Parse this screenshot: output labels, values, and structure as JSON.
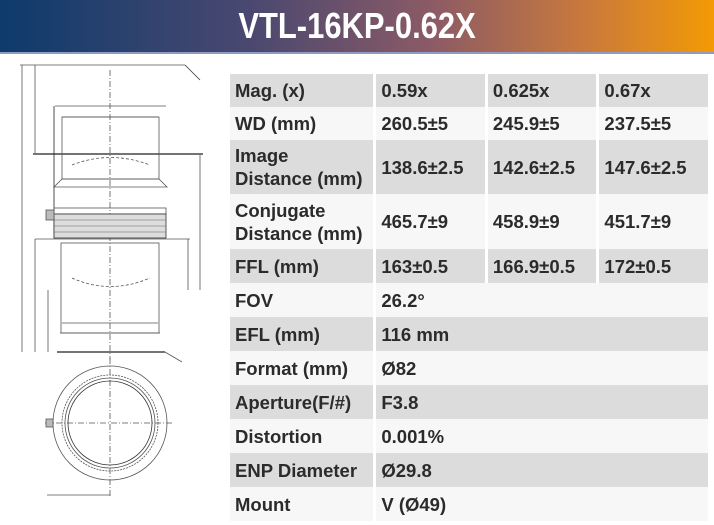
{
  "header": {
    "title": "VTL-16KP-0.62X"
  },
  "specs": {
    "rows": [
      {
        "label": "Mag. (x)",
        "values": [
          "0.59x",
          "0.625x",
          "0.67x"
        ]
      },
      {
        "label": "WD (mm)",
        "values": [
          "260.5±5",
          "245.9±5",
          "237.5±5"
        ]
      },
      {
        "label": "Image Distance (mm)",
        "values": [
          "138.6±2.5",
          "142.6±2.5",
          "147.6±2.5"
        ]
      },
      {
        "label": "Conjugate Distance (mm)",
        "values": [
          "465.7±9",
          "458.9±9",
          "451.7±9"
        ]
      },
      {
        "label": "FFL (mm)",
        "values": [
          "163±0.5",
          "166.9±0.5",
          "172±0.5"
        ]
      },
      {
        "label": "FOV",
        "value": "26.2°"
      },
      {
        "label": "EFL (mm)",
        "value": "116 mm"
      },
      {
        "label": "Format (mm)",
        "value": "Ø82"
      },
      {
        "label": "Aperture(F/#)",
        "value": "F3.8"
      },
      {
        "label": "Distortion",
        "value": "0.001%"
      },
      {
        "label": "ENP Diameter",
        "value": "Ø29.8"
      },
      {
        "label": "Mount",
        "value": "V (Ø49)"
      }
    ]
  },
  "colors": {
    "gradient_start": "#0d3b6c",
    "gradient_end": "#f39a05",
    "row_dark": "#dcdcdc",
    "row_light": "#f7f7f7"
  }
}
